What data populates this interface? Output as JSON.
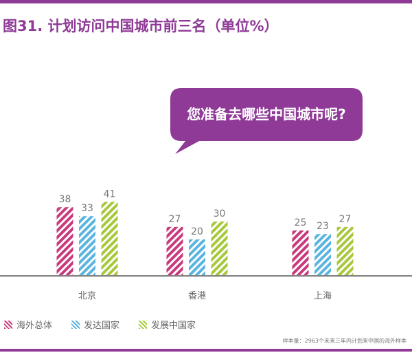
{
  "title": "图31. 计划访问中国城市前三名（单位%）",
  "bubble_text": "您准备去哪些中国城市呢?",
  "footnote": "样本量：2963个未来三年内计划来中国的海外样本",
  "colors": {
    "accent": "#8e3a96",
    "series": [
      "#c83a7c",
      "#5ab4e0",
      "#a8c83c"
    ]
  },
  "chart_data": {
    "type": "bar",
    "title": "图31. 计划访问中国城市前三名（单位%）",
    "categories": [
      "北京",
      "香港",
      "上海"
    ],
    "series": [
      {
        "name": "海外总体",
        "values": [
          38,
          27,
          25
        ]
      },
      {
        "name": "发达国家",
        "values": [
          33,
          20,
          23
        ]
      },
      {
        "name": "发展中国家",
        "values": [
          41,
          30,
          27
        ]
      }
    ],
    "ylim": [
      0,
      100
    ],
    "grid": false,
    "legend": "bottom-left",
    "xlabel": "",
    "ylabel": ""
  }
}
